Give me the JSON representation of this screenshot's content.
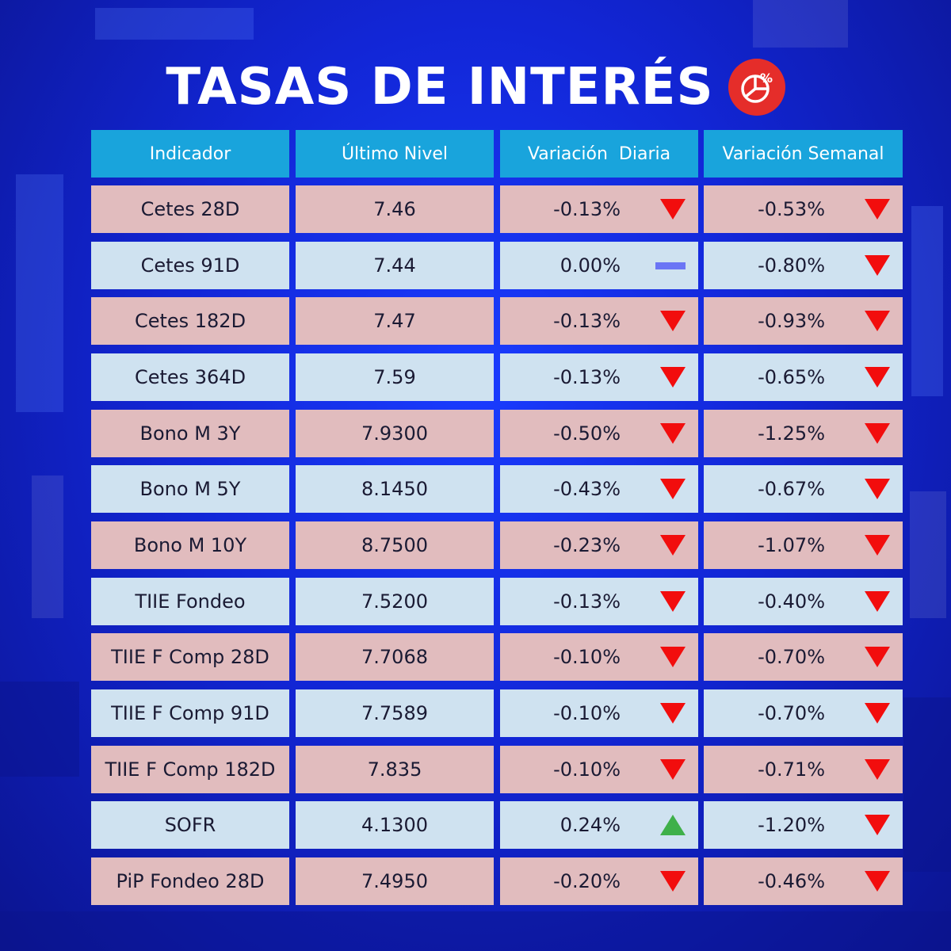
{
  "title": "TASAS DE INTERÉS",
  "title_icon": "percentage-pie-chart-icon",
  "colors": {
    "header_bg": "#19a4dc",
    "row_pink": "#e1bcbe",
    "row_blue": "#cfe2f0",
    "down": "#f20d0d",
    "up": "#3fb04a",
    "flat": "#6b75f5",
    "icon_bg": "#e52d2a"
  },
  "headers": [
    "Indicador",
    "Último Nivel",
    "Variación  Diaria",
    "Variación Semanal"
  ],
  "rows": [
    {
      "indicador": "Cetes 28D",
      "nivel": "7.46",
      "diaria": "-0.13%",
      "diaria_dir": "down",
      "semanal": "-0.53%",
      "semanal_dir": "down"
    },
    {
      "indicador": "Cetes 91D",
      "nivel": "7.44",
      "diaria": "0.00%",
      "diaria_dir": "flat",
      "semanal": "-0.80%",
      "semanal_dir": "down"
    },
    {
      "indicador": "Cetes 182D",
      "nivel": "7.47",
      "diaria": "-0.13%",
      "diaria_dir": "down",
      "semanal": "-0.93%",
      "semanal_dir": "down"
    },
    {
      "indicador": "Cetes 364D",
      "nivel": "7.59",
      "diaria": "-0.13%",
      "diaria_dir": "down",
      "semanal": "-0.65%",
      "semanal_dir": "down"
    },
    {
      "indicador": "Bono M 3Y",
      "nivel": "7.9300",
      "diaria": "-0.50%",
      "diaria_dir": "down",
      "semanal": "-1.25%",
      "semanal_dir": "down"
    },
    {
      "indicador": "Bono M 5Y",
      "nivel": "8.1450",
      "diaria": "-0.43%",
      "diaria_dir": "down",
      "semanal": "-0.67%",
      "semanal_dir": "down"
    },
    {
      "indicador": "Bono M 10Y",
      "nivel": "8.7500",
      "diaria": "-0.23%",
      "diaria_dir": "down",
      "semanal": "-1.07%",
      "semanal_dir": "down"
    },
    {
      "indicador": "TIIE Fondeo",
      "nivel": "7.5200",
      "diaria": "-0.13%",
      "diaria_dir": "down",
      "semanal": "-0.40%",
      "semanal_dir": "down"
    },
    {
      "indicador": "TIIE F Comp 28D",
      "nivel": "7.7068",
      "diaria": "-0.10%",
      "diaria_dir": "down",
      "semanal": "-0.70%",
      "semanal_dir": "down"
    },
    {
      "indicador": "TIIE F Comp 91D",
      "nivel": "7.7589",
      "diaria": "-0.10%",
      "diaria_dir": "down",
      "semanal": "-0.70%",
      "semanal_dir": "down"
    },
    {
      "indicador": "TIIE F Comp 182D",
      "nivel": "7.835",
      "diaria": "-0.10%",
      "diaria_dir": "down",
      "semanal": "-0.71%",
      "semanal_dir": "down"
    },
    {
      "indicador": "SOFR",
      "nivel": "4.1300",
      "diaria": "0.24%",
      "diaria_dir": "up",
      "semanal": "-1.20%",
      "semanal_dir": "down"
    },
    {
      "indicador": "PiP Fondeo 28D",
      "nivel": "7.4950",
      "diaria": "-0.20%",
      "diaria_dir": "down",
      "semanal": "-0.46%",
      "semanal_dir": "down"
    }
  ]
}
